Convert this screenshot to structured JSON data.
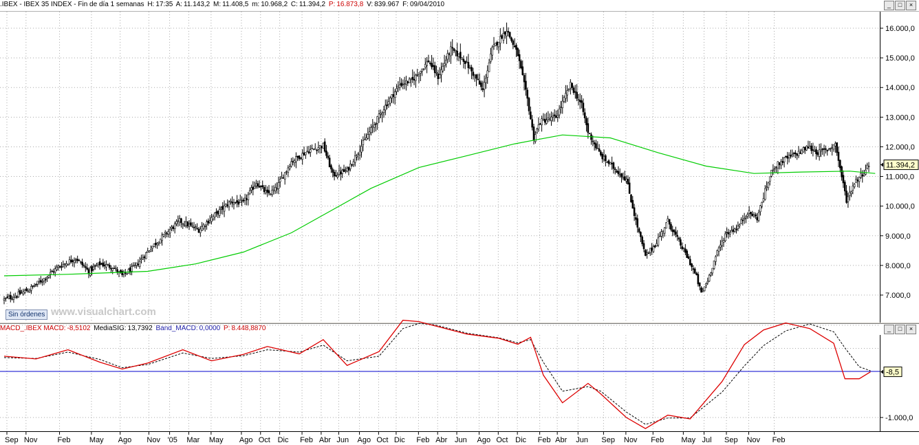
{
  "top_bar": {
    "symbol": ".IBEX - IBEX 35 INDEX - Fin de día 1 semanas",
    "h_label": "H:",
    "h_value": "17:35",
    "a_label": "A:",
    "a_value": "11.143,2",
    "m_label": "M:",
    "m_value": "11.408,5",
    "min_label": "m:",
    "min_value": "10.968,2",
    "c_label": "C:",
    "c_value": "11.394,2",
    "p_label": "P:",
    "p_value": "16.873,8",
    "v_label": "V:",
    "v_value": "839.967",
    "f_label": "F:",
    "f_value": "09/04/2010"
  },
  "mid_bar": {
    "label": "MACD_.IBEX MACD:",
    "macd_value": "-8,5102",
    "sig_label": "MediaSIG:",
    "sig_value": "13,7392",
    "band_label": "Band_MACD:",
    "band_value": "0,0000",
    "p_label": "P:",
    "p_value": "8.448,8870"
  },
  "window_buttons": [
    "_",
    "□",
    "×"
  ],
  "sin_ordenes": "Sin órdenes",
  "watermark": "www.visualchart.com",
  "price_tag": "11.394,2",
  "macd_tag": "-8,5",
  "colors": {
    "candle": "#000000",
    "ma": "#00cc00",
    "macd": "#dd0000",
    "signal": "#000000",
    "band": "#0000cc",
    "grid": "#a0a0a0",
    "plot_bg": "#ffffff"
  },
  "chart_data": [
    {
      "type": "candlestick",
      "title": "IBEX 35 INDEX weekly",
      "ylim": [
        6500,
        16500
      ],
      "y_ticks": [
        "7.000,0",
        "8.000,0",
        "9.000,0",
        "10.000,0",
        "11.000,0",
        "12.000,0",
        "13.000,0",
        "14.000,0",
        "15.000,0",
        "16.000,0"
      ],
      "y_tick_values": [
        7000,
        8000,
        9000,
        10000,
        11000,
        12000,
        13000,
        14000,
        15000,
        16000
      ],
      "close_path": [
        [
          0,
          6850
        ],
        [
          8,
          7000
        ],
        [
          16,
          7200
        ],
        [
          25,
          7550
        ],
        [
          34,
          7950
        ],
        [
          45,
          8250
        ],
        [
          53,
          7800
        ],
        [
          60,
          8050
        ],
        [
          68,
          7950
        ],
        [
          74,
          7650
        ],
        [
          82,
          7950
        ],
        [
          92,
          8600
        ],
        [
          102,
          9100
        ],
        [
          110,
          9500
        ],
        [
          122,
          9200
        ],
        [
          132,
          9700
        ],
        [
          142,
          10150
        ],
        [
          150,
          10100
        ],
        [
          158,
          10800
        ],
        [
          165,
          10400
        ],
        [
          170,
          10550
        ],
        [
          180,
          11500
        ],
        [
          190,
          11850
        ],
        [
          200,
          12050
        ],
        [
          206,
          11050
        ],
        [
          215,
          11200
        ],
        [
          228,
          12400
        ],
        [
          238,
          13300
        ],
        [
          248,
          14100
        ],
        [
          256,
          14250
        ],
        [
          266,
          14900
        ],
        [
          272,
          14350
        ],
        [
          280,
          15300
        ],
        [
          288,
          14950
        ],
        [
          296,
          14300
        ],
        [
          300,
          13900
        ],
        [
          306,
          15300
        ],
        [
          315,
          15950
        ],
        [
          322,
          15100
        ],
        [
          328,
          13600
        ],
        [
          332,
          12300
        ],
        [
          336,
          12850
        ],
        [
          346,
          13000
        ],
        [
          355,
          14100
        ],
        [
          362,
          13400
        ],
        [
          366,
          12500
        ],
        [
          374,
          11700
        ],
        [
          382,
          11300
        ],
        [
          390,
          10900
        ],
        [
          396,
          9500
        ],
        [
          402,
          8300
        ],
        [
          408,
          8700
        ],
        [
          416,
          9500
        ],
        [
          423,
          8800
        ],
        [
          429,
          8200
        ],
        [
          434,
          7600
        ],
        [
          437,
          7050
        ],
        [
          441,
          7500
        ],
        [
          446,
          8300
        ],
        [
          452,
          9050
        ],
        [
          460,
          9300
        ],
        [
          466,
          9800
        ],
        [
          472,
          9600
        ],
        [
          477,
          10500
        ],
        [
          482,
          11300
        ],
        [
          490,
          11600
        ],
        [
          498,
          11800
        ],
        [
          504,
          12000
        ],
        [
          510,
          11800
        ],
        [
          516,
          11900
        ],
        [
          521,
          12100
        ],
        [
          525,
          11000
        ],
        [
          528,
          10200
        ],
        [
          533,
          10800
        ],
        [
          538,
          11100
        ],
        [
          542,
          11394
        ]
      ],
      "ma": {
        "name": "MA",
        "points": [
          [
            0,
            7650
          ],
          [
            40,
            7700
          ],
          [
            90,
            7800
          ],
          [
            120,
            8050
          ],
          [
            150,
            8450
          ],
          [
            180,
            9100
          ],
          [
            200,
            9700
          ],
          [
            230,
            10600
          ],
          [
            260,
            11300
          ],
          [
            290,
            11700
          ],
          [
            320,
            12100
          ],
          [
            350,
            12400
          ],
          [
            380,
            12300
          ],
          [
            410,
            11800
          ],
          [
            440,
            11350
          ],
          [
            470,
            11100
          ],
          [
            500,
            11150
          ],
          [
            530,
            11180
          ],
          [
            546,
            11100
          ]
        ]
      },
      "last_price": 11394.2
    },
    {
      "type": "line",
      "title": "MACD",
      "ylim": [
        -1300,
        1150
      ],
      "y_ticks": [
        "-1.000,0"
      ],
      "y_tick_values": [
        -1000
      ],
      "series": [
        {
          "name": "MACD",
          "points": [
            [
              0,
              330
            ],
            [
              20,
              270
            ],
            [
              40,
              470
            ],
            [
              60,
              200
            ],
            [
              74,
              50
            ],
            [
              90,
              180
            ],
            [
              112,
              470
            ],
            [
              130,
              230
            ],
            [
              150,
              370
            ],
            [
              165,
              540
            ],
            [
              185,
              380
            ],
            [
              200,
              690
            ],
            [
              215,
              130
            ],
            [
              235,
              430
            ],
            [
              250,
              1110
            ],
            [
              260,
              1080
            ],
            [
              270,
              990
            ],
            [
              290,
              810
            ],
            [
              310,
              720
            ],
            [
              322,
              590
            ],
            [
              330,
              740
            ],
            [
              338,
              -80
            ],
            [
              350,
              -680
            ],
            [
              366,
              -260
            ],
            [
              374,
              -490
            ],
            [
              390,
              -1000
            ],
            [
              402,
              -1240
            ],
            [
              416,
              -950
            ],
            [
              430,
              -1030
            ],
            [
              450,
              -220
            ],
            [
              464,
              580
            ],
            [
              476,
              900
            ],
            [
              490,
              1050
            ],
            [
              505,
              930
            ],
            [
              520,
              610
            ],
            [
              527,
              -160
            ],
            [
              536,
              -160
            ],
            [
              543,
              -10
            ]
          ]
        },
        {
          "name": "MediaSIG",
          "points": [
            [
              0,
              300
            ],
            [
              20,
              280
            ],
            [
              40,
              420
            ],
            [
              60,
              260
            ],
            [
              74,
              80
            ],
            [
              90,
              150
            ],
            [
              112,
              400
            ],
            [
              130,
              280
            ],
            [
              150,
              340
            ],
            [
              165,
              470
            ],
            [
              185,
              420
            ],
            [
              200,
              570
            ],
            [
              215,
              230
            ],
            [
              235,
              330
            ],
            [
              250,
              930
            ],
            [
              260,
              1040
            ],
            [
              270,
              1010
            ],
            [
              290,
              830
            ],
            [
              310,
              730
            ],
            [
              322,
              620
            ],
            [
              330,
              690
            ],
            [
              338,
              200
            ],
            [
              350,
              -430
            ],
            [
              366,
              -330
            ],
            [
              374,
              -430
            ],
            [
              390,
              -880
            ],
            [
              402,
              -1150
            ],
            [
              416,
              -1010
            ],
            [
              430,
              -1010
            ],
            [
              450,
              -450
            ],
            [
              464,
              120
            ],
            [
              476,
              560
            ],
            [
              490,
              880
            ],
            [
              505,
              1030
            ],
            [
              520,
              860
            ],
            [
              527,
              510
            ],
            [
              536,
              100
            ],
            [
              543,
              15
            ]
          ]
        }
      ],
      "band": 0,
      "last_value": -8.5
    }
  ],
  "x_axis": {
    "labels": [
      "Sep",
      "Nov",
      "Feb",
      "May",
      "Ago",
      "Nov",
      "'05",
      "Mar",
      "May",
      "Ago",
      "Oct",
      "Dic",
      "Feb",
      "Abr",
      "Jun",
      "Ago",
      "Oct",
      "Dic",
      "Feb",
      "Abr",
      "Jun",
      "Ago",
      "Oct",
      "Dic",
      "Feb",
      "Abr",
      "Jun",
      "Sep",
      "Nov",
      "Feb",
      "May",
      "Jul",
      "Sep",
      "Nov",
      "Feb"
    ],
    "positions": [
      0,
      12,
      33,
      53,
      71,
      89,
      102,
      114,
      128,
      147,
      159,
      171,
      185,
      197,
      208,
      221,
      233,
      244,
      258,
      270,
      282,
      296,
      308,
      320,
      334,
      345,
      358,
      374,
      388,
      405,
      424,
      437,
      451,
      465,
      481
    ]
  }
}
